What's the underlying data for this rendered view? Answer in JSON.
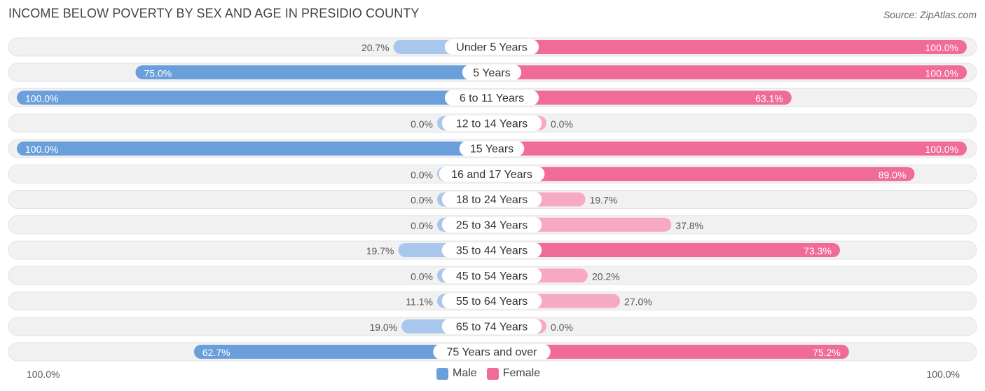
{
  "header": {
    "title": "INCOME BELOW POVERTY BY SEX AND AGE IN PRESIDIO COUNTY",
    "source": "Source: ZipAtlas.com"
  },
  "colors": {
    "male_strong": "#6a9fdb",
    "male_light": "#a9c7ec",
    "female_strong": "#f06b95",
    "female_light": "#f7a8c3",
    "track": "#f1f1f1"
  },
  "legend": {
    "male": "Male",
    "female": "Female",
    "axis_left": "100.0%",
    "axis_right": "100.0%"
  },
  "chart_data": {
    "type": "bar",
    "orientation": "diverging-horizontal",
    "title": "INCOME BELOW POVERTY BY SEX AND AGE IN PRESIDIO COUNTY",
    "xlim": [
      -100,
      100
    ],
    "categories": [
      "Under 5 Years",
      "5 Years",
      "6 to 11 Years",
      "12 to 14 Years",
      "15 Years",
      "16 and 17 Years",
      "18 to 24 Years",
      "25 to 34 Years",
      "35 to 44 Years",
      "45 to 54 Years",
      "55 to 64 Years",
      "65 to 74 Years",
      "75 Years and over"
    ],
    "series": [
      {
        "name": "Male",
        "values": [
          20.7,
          75.0,
          100.0,
          0.0,
          100.0,
          0.0,
          0.0,
          0.0,
          19.7,
          0.0,
          11.1,
          19.0,
          62.7
        ],
        "labels": [
          "20.7%",
          "75.0%",
          "100.0%",
          "0.0%",
          "100.0%",
          "0.0%",
          "0.0%",
          "0.0%",
          "19.7%",
          "0.0%",
          "11.1%",
          "19.0%",
          "62.7%"
        ]
      },
      {
        "name": "Female",
        "values": [
          100.0,
          100.0,
          63.1,
          0.0,
          100.0,
          89.0,
          19.7,
          37.8,
          73.3,
          20.2,
          27.0,
          0.0,
          75.2
        ],
        "labels": [
          "100.0%",
          "100.0%",
          "63.1%",
          "0.0%",
          "100.0%",
          "89.0%",
          "19.7%",
          "37.8%",
          "73.3%",
          "20.2%",
          "27.0%",
          "0.0%",
          "75.2%"
        ]
      }
    ]
  }
}
